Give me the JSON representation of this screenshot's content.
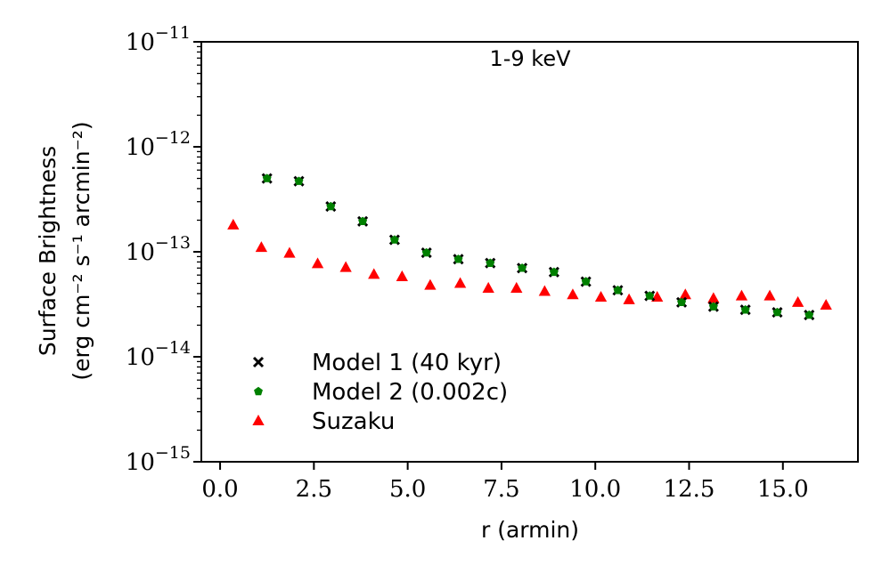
{
  "chart_data": {
    "type": "scatter",
    "title": "1-9 keV",
    "xlabel": "r (armin)",
    "ylabel_line1": "Surface Brightness",
    "ylabel_line2": "(erg cm⁻² s⁻¹ arcmin⁻²)",
    "xlim": [
      -0.5,
      17
    ],
    "ylim": [
      1e-15,
      1e-11
    ],
    "yscale": "log",
    "x_ticks": [
      0.0,
      2.5,
      5.0,
      7.5,
      10.0,
      12.5,
      15.0
    ],
    "x_tick_labels": [
      "0.0",
      "2.5",
      "5.0",
      "7.5",
      "10.0",
      "12.5",
      "15.0"
    ],
    "y_ticks": [
      1e-15,
      1e-14,
      1e-13,
      1e-12,
      1e-11
    ],
    "y_tick_labels": [
      {
        "base": "10",
        "exp": "−15"
      },
      {
        "base": "10",
        "exp": "−14"
      },
      {
        "base": "10",
        "exp": "−13"
      },
      {
        "base": "10",
        "exp": "−12"
      },
      {
        "base": "10",
        "exp": "−11"
      }
    ],
    "legend_position": "lower-left",
    "series": [
      {
        "name": "Model 1 (40 kyr)",
        "marker": "x",
        "color": "#000000",
        "x": [
          1.25,
          2.1,
          2.95,
          3.8,
          4.65,
          5.5,
          6.35,
          7.2,
          8.05,
          8.9,
          9.75,
          10.6,
          11.45,
          12.3,
          13.15,
          14.0,
          14.85,
          15.7
        ],
        "y": [
          5e-13,
          4.7e-13,
          2.7e-13,
          1.95e-13,
          1.3e-13,
          9.8e-14,
          8.5e-14,
          7.8e-14,
          7e-14,
          6.4e-14,
          5.2e-14,
          4.3e-14,
          3.8e-14,
          3.3e-14,
          3e-14,
          2.8e-14,
          2.65e-14,
          2.5e-14
        ]
      },
      {
        "name": "Model 2 (0.002c)",
        "marker": "pentagon",
        "color": "#008000",
        "x": [
          1.25,
          2.1,
          2.95,
          3.8,
          4.65,
          5.5,
          6.35,
          7.2,
          8.05,
          8.9,
          9.75,
          10.6,
          11.45,
          12.3,
          13.15,
          14.0,
          14.85,
          15.7
        ],
        "y": [
          5e-13,
          4.7e-13,
          2.7e-13,
          1.95e-13,
          1.3e-13,
          9.8e-14,
          8.5e-14,
          7.8e-14,
          7e-14,
          6.4e-14,
          5.2e-14,
          4.3e-14,
          3.8e-14,
          3.3e-14,
          3e-14,
          2.8e-14,
          2.65e-14,
          2.5e-14
        ]
      },
      {
        "name": "Suzaku",
        "marker": "triangle",
        "color": "#ff0000",
        "x": [
          0.35,
          1.1,
          1.85,
          2.6,
          3.35,
          4.1,
          4.85,
          5.6,
          6.4,
          7.15,
          7.9,
          8.65,
          9.4,
          10.15,
          10.9,
          11.65,
          12.4,
          13.15,
          13.9,
          14.65,
          15.4,
          16.15
        ],
        "y": [
          1.8e-13,
          1.1e-13,
          9.7e-14,
          7.7e-14,
          7.1e-14,
          6.1e-14,
          5.8e-14,
          4.8e-14,
          5e-14,
          4.5e-14,
          4.5e-14,
          4.2e-14,
          3.9e-14,
          3.7e-14,
          3.5e-14,
          3.7e-14,
          3.9e-14,
          3.6e-14,
          3.8e-14,
          3.8e-14,
          3.3e-14,
          3.1e-14
        ]
      }
    ]
  }
}
